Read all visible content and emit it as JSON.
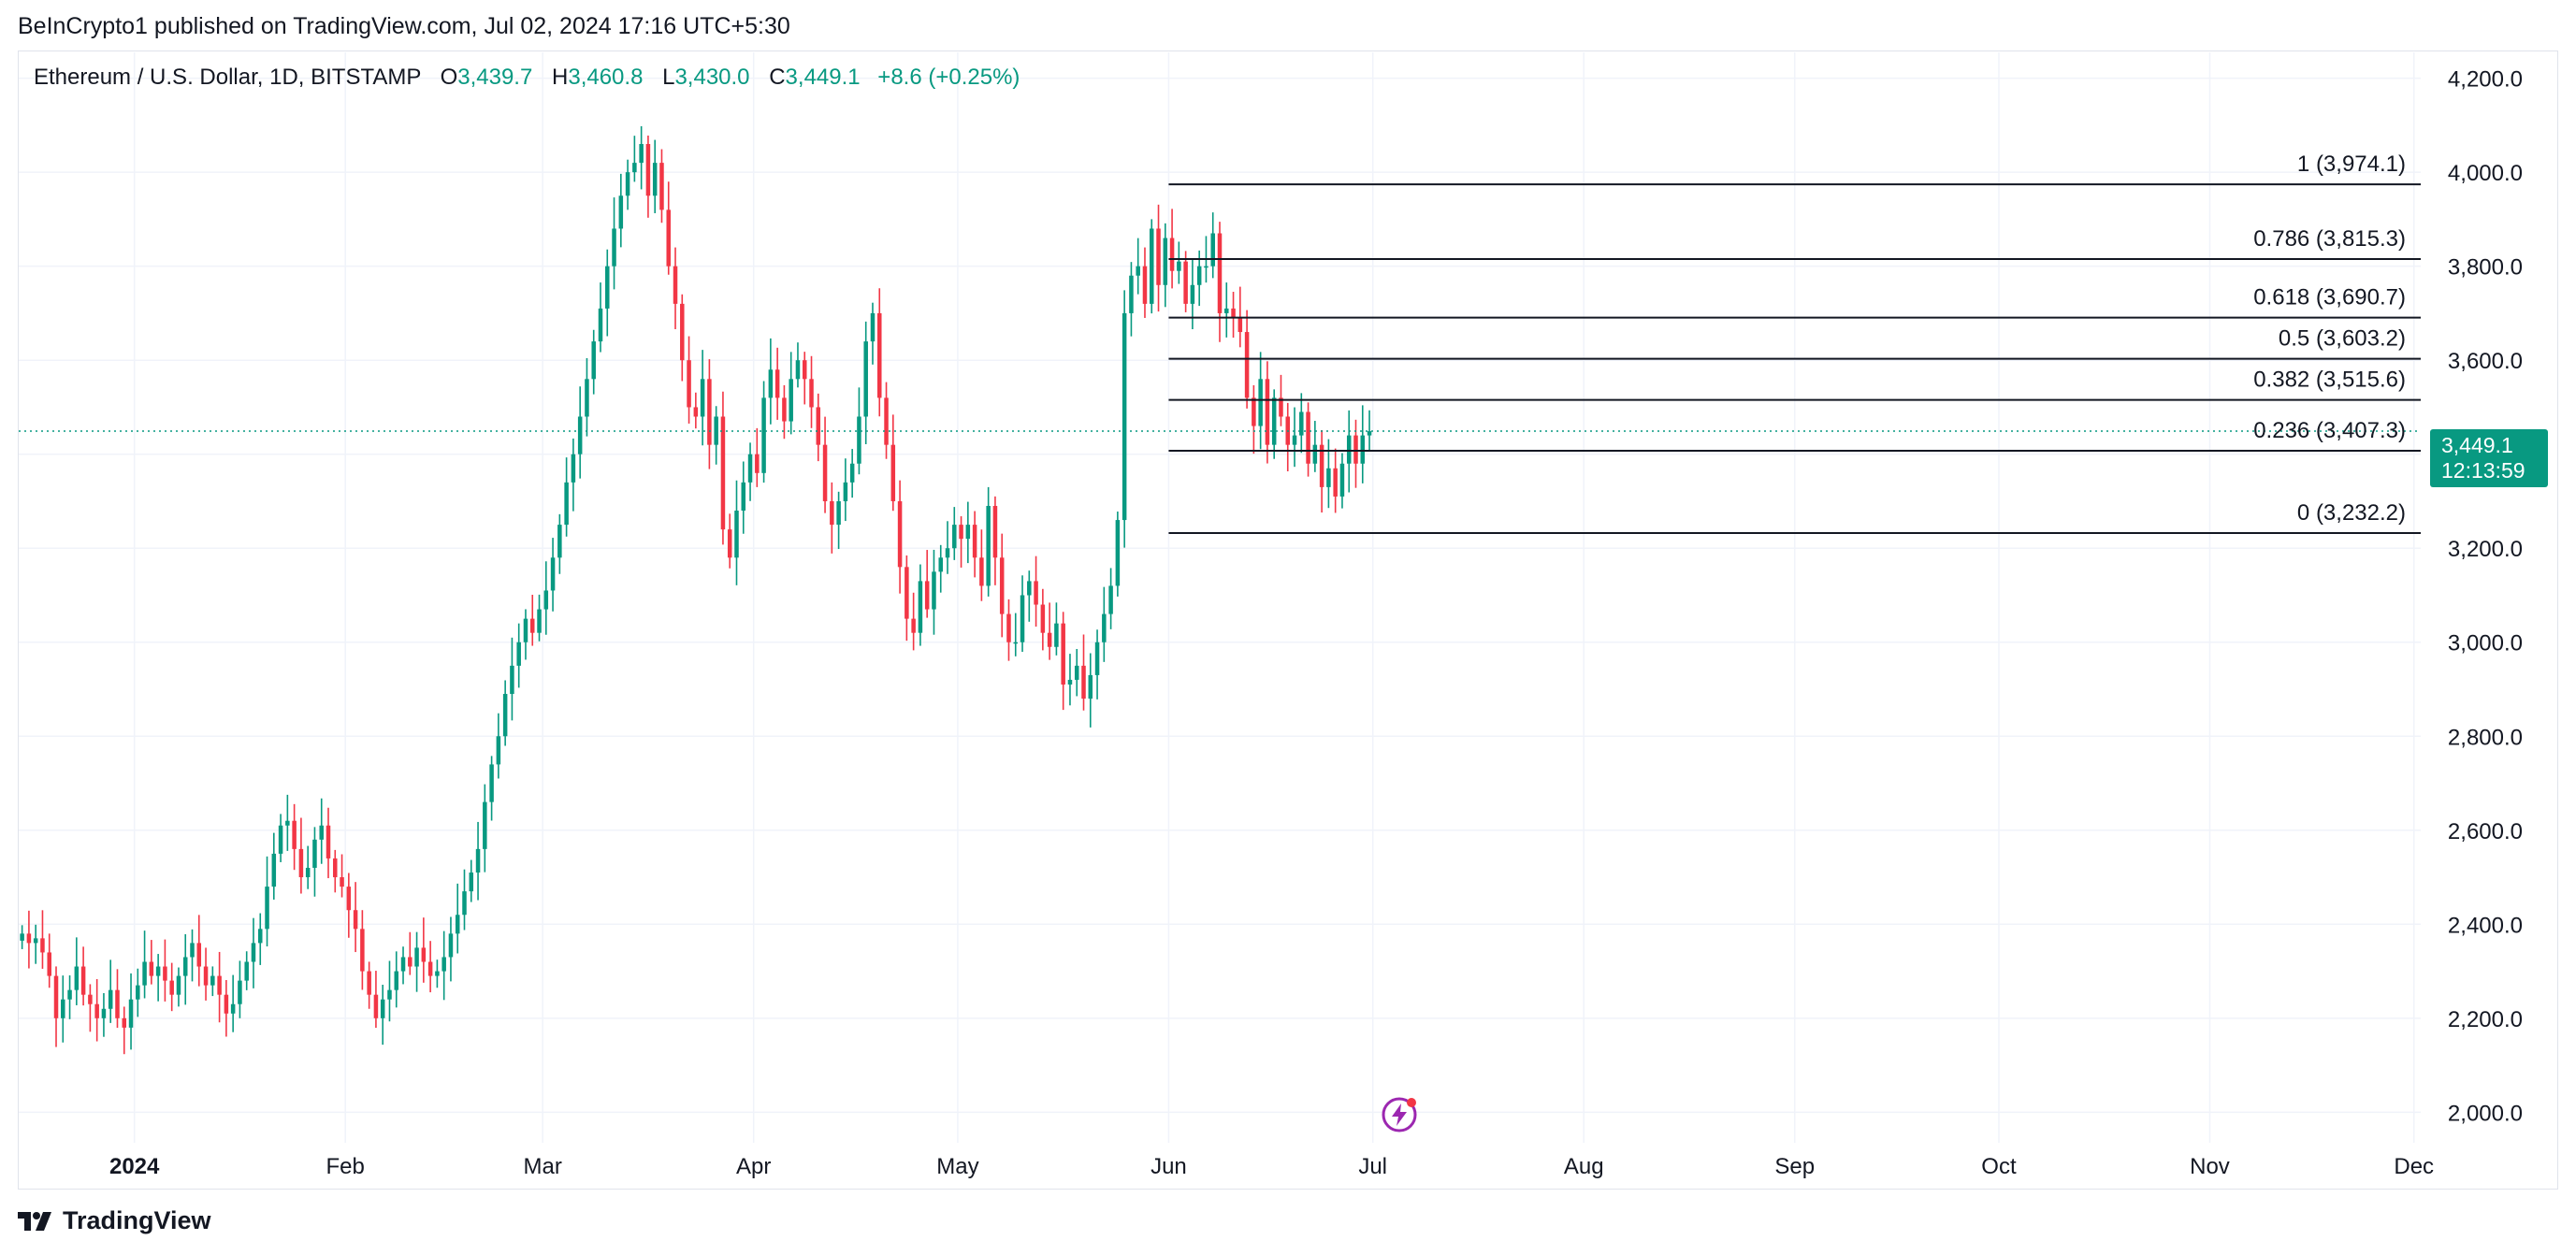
{
  "header": {
    "published_by": "BeInCrypto1 published on TradingView.com, Jul 02, 2024 17:16 UTC+5:30"
  },
  "legend": {
    "symbol": "Ethereum / U.S. Dollar, 1D, BITSTAMP",
    "open_label": "O",
    "open": "3,439.7",
    "high_label": "H",
    "high": "3,460.8",
    "low_label": "L",
    "low": "3,430.0",
    "close_label": "C",
    "close": "3,449.1",
    "change": "+8.6 (+0.25%)"
  },
  "price_tag": {
    "price": "3,449.1",
    "countdown": "12:13:59",
    "color": "#089981"
  },
  "footer": {
    "brand": "TradingView"
  },
  "colors": {
    "up": "#089981",
    "down": "#f23645",
    "grid": "#f0f3fa",
    "fib": "#131722"
  },
  "chart_data": {
    "type": "candlestick",
    "title": "Ethereum / U.S. Dollar, 1D, BITSTAMP",
    "y_ticks": [
      2000,
      2200,
      2400,
      2600,
      2800,
      3000,
      3200,
      3400,
      3600,
      3800,
      4000,
      4200
    ],
    "y_tick_labels": [
      "2,000.0",
      "2,200.0",
      "2,400.0",
      "2,600.0",
      "2,800.0",
      "3,000.0",
      "3,200.0",
      "",
      "3,600.0",
      "3,800.0",
      "4,000.0",
      "4,200.0"
    ],
    "ylim": [
      1935,
      4255
    ],
    "x_ticks": [
      "2024",
      "Feb",
      "Mar",
      "Apr",
      "May",
      "Jun",
      "Jul",
      "Aug",
      "Sep",
      "Oct",
      "Nov",
      "Dec"
    ],
    "x_tick_days": [
      17,
      48,
      77,
      108,
      138,
      169,
      199,
      230,
      261,
      291,
      322,
      352
    ],
    "x_range_days": [
      0,
      353
    ],
    "last_price": 3449.1,
    "fibonacci": {
      "start_day": 169,
      "end_day": 352,
      "levels": [
        {
          "ratio": "1",
          "price": 3974.1,
          "label": "1 (3,974.1)"
        },
        {
          "ratio": "0.786",
          "price": 3815.3,
          "label": "0.786 (3,815.3)"
        },
        {
          "ratio": "0.618",
          "price": 3690.7,
          "label": "0.618 (3,690.7)"
        },
        {
          "ratio": "0.5",
          "price": 3603.2,
          "label": "0.5 (3,603.2)"
        },
        {
          "ratio": "0.382",
          "price": 3515.6,
          "label": "0.382 (3,515.6)"
        },
        {
          "ratio": "0.236",
          "price": 3407.3,
          "label": "0.236 (3,407.3)"
        },
        {
          "ratio": "0",
          "price": 3232.2,
          "label": "0 (3,232.2)"
        }
      ]
    },
    "close_series": [
      2380,
      2360,
      2370,
      2340,
      2290,
      2200,
      2240,
      2260,
      2310,
      2250,
      2230,
      2200,
      2220,
      2260,
      2200,
      2180,
      2240,
      2270,
      2320,
      2290,
      2310,
      2280,
      2250,
      2290,
      2330,
      2360,
      2310,
      2270,
      2290,
      2250,
      2210,
      2230,
      2280,
      2320,
      2360,
      2390,
      2480,
      2550,
      2610,
      2620,
      2560,
      2500,
      2520,
      2580,
      2610,
      2540,
      2500,
      2480,
      2430,
      2390,
      2300,
      2250,
      2200,
      2240,
      2260,
      2300,
      2330,
      2310,
      2350,
      2320,
      2290,
      2300,
      2330,
      2380,
      2420,
      2470,
      2510,
      2560,
      2660,
      2740,
      2800,
      2890,
      2950,
      3000,
      3050,
      3020,
      3070,
      3110,
      3180,
      3250,
      3340,
      3400,
      3480,
      3560,
      3640,
      3710,
      3800,
      3880,
      3950,
      4000,
      4020,
      4060,
      3950,
      4020,
      3920,
      3800,
      3720,
      3600,
      3500,
      3480,
      3560,
      3420,
      3480,
      3240,
      3180,
      3280,
      3340,
      3400,
      3360,
      3520,
      3580,
      3520,
      3470,
      3560,
      3600,
      3560,
      3500,
      3420,
      3300,
      3250,
      3300,
      3340,
      3380,
      3480,
      3640,
      3700,
      3520,
      3420,
      3300,
      3160,
      3050,
      3020,
      3130,
      3070,
      3150,
      3180,
      3200,
      3250,
      3220,
      3250,
      3180,
      3120,
      3290,
      3180,
      3060,
      3000,
      3000,
      3100,
      3130,
      3080,
      3020,
      2990,
      3040,
      2910,
      2920,
      2950,
      2880,
      2930,
      3000,
      3060,
      3120,
      3260,
      3700,
      3780,
      3800,
      3720,
      3880,
      3760,
      3860,
      3790,
      3810,
      3720,
      3760,
      3800,
      3800,
      3870,
      3700,
      3710,
      3690,
      3660,
      3520,
      3460,
      3560,
      3420,
      3520,
      3480,
      3420,
      3440,
      3490,
      3380,
      3420,
      3330,
      3370,
      3310,
      3380,
      3440,
      3380,
      3440,
      3449
    ]
  }
}
